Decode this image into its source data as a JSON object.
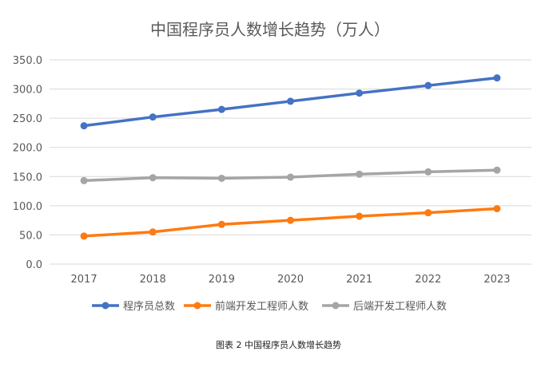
{
  "chart_data": {
    "type": "line",
    "title": "中国程序员人数增长趋势（万人）",
    "categories": [
      "2017",
      "2018",
      "2019",
      "2020",
      "2021",
      "2022",
      "2023"
    ],
    "ylim": [
      0,
      350
    ],
    "yticks": [
      "0.0",
      "50.0",
      "100.0",
      "150.0",
      "200.0",
      "250.0",
      "300.0",
      "350.0"
    ],
    "grid": true,
    "legend": "bottom",
    "series": [
      {
        "name": "程序员总数",
        "color": "#4472C4",
        "values": [
          237,
          252,
          265,
          279,
          293,
          306,
          319
        ]
      },
      {
        "name": "前端开发工程师人数",
        "color": "#FF7A0F",
        "values": [
          48,
          55,
          68,
          75,
          82,
          88,
          95
        ]
      },
      {
        "name": "后端开发工程师人数",
        "color": "#A5A5A5",
        "values": [
          143,
          148,
          147,
          149,
          154,
          158,
          161
        ]
      }
    ]
  },
  "caption": "图表 2   中国程序员人数增长趋势"
}
